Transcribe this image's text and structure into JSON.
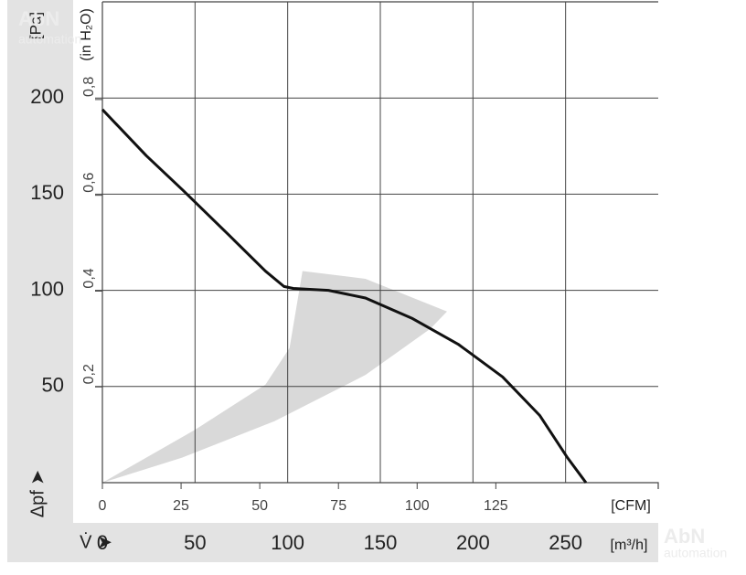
{
  "chart_data": {
    "type": "line",
    "ylabel": "[Pa]",
    "y2label": "(in H₂O)",
    "y_symbol": "Δpf ➤",
    "x_symbol": "V̇ ➤",
    "xlabel": "[m³/h]",
    "x2label": "[CFM]",
    "watermark": [
      "AbN",
      "automation"
    ],
    "xlim": [
      0,
      300
    ],
    "xticks": [
      0,
      50,
      100,
      150,
      200,
      250
    ],
    "ylim": [
      0,
      250
    ],
    "yticks": [
      50,
      100,
      150,
      200
    ],
    "x2lim": [
      0,
      176.6
    ],
    "x2ticks": [
      0,
      25,
      50,
      75,
      100,
      125
    ],
    "y2lim": [
      0,
      1.004
    ],
    "y2ticks": [
      {
        "value": 0.2,
        "label": "0,2"
      },
      {
        "value": 0.4,
        "label": "0,4"
      },
      {
        "value": 0.6,
        "label": "0,6"
      },
      {
        "value": 0.8,
        "label": "0,8"
      }
    ],
    "grid": true,
    "area": {
      "color": "#d9d9d9",
      "x": [
        0,
        50,
        88,
        101,
        108,
        142,
        186,
        177,
        142,
        93,
        43
      ],
      "values": [
        0,
        27.5,
        51,
        70,
        110,
        106,
        89,
        80,
        56,
        32,
        13
      ]
    },
    "series": [
      {
        "color": "#111111",
        "x": [
          0,
          23.7,
          43.5,
          68,
          88,
          98,
          103,
          122,
          142,
          167,
          192,
          216,
          236,
          251,
          261
        ],
        "values": [
          194,
          170,
          152,
          129,
          110,
          102,
          101,
          100,
          96,
          85.5,
          72,
          55,
          35,
          13,
          0
        ]
      }
    ]
  }
}
